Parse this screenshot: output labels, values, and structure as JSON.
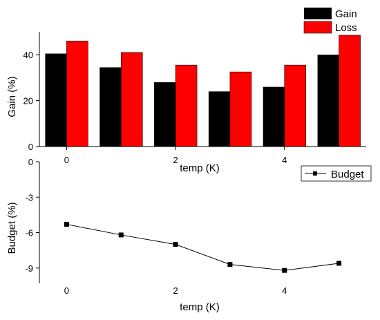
{
  "chart_data": [
    {
      "type": "bar",
      "title": "",
      "xlabel": "temp (K)",
      "ylabel": "Gain (%)",
      "x": [
        0,
        1,
        2,
        3,
        4,
        5
      ],
      "xticks": [
        "0",
        "2",
        "4"
      ],
      "yticks": [
        "0",
        "20",
        "40"
      ],
      "ylim": [
        0,
        50
      ],
      "xlim": [
        -0.5,
        5.5
      ],
      "legend": "top-right",
      "series": [
        {
          "name": "Gain",
          "color": "#000000",
          "values": [
            40.5,
            34.5,
            28,
            24,
            26,
            40
          ]
        },
        {
          "name": "Loss",
          "color": "#ff0000",
          "values": [
            46,
            41,
            35.5,
            32.5,
            35.5,
            48.5
          ]
        }
      ]
    },
    {
      "type": "line",
      "title": "",
      "xlabel": "temp (K)",
      "ylabel": "Budget (%)",
      "x": [
        0,
        1,
        2,
        3,
        4,
        5
      ],
      "xticks": [
        "0",
        "2",
        "4"
      ],
      "yticks": [
        "0",
        "-3",
        "-6",
        "-9"
      ],
      "ylim": [
        -10.3,
        0
      ],
      "xlim": [
        -0.5,
        5.5
      ],
      "legend": "top-right",
      "series": [
        {
          "name": "Budget",
          "color": "#000000",
          "marker": "square",
          "values": [
            -5.3,
            -6.2,
            -7.0,
            -8.7,
            -9.2,
            -8.6
          ]
        }
      ]
    }
  ]
}
